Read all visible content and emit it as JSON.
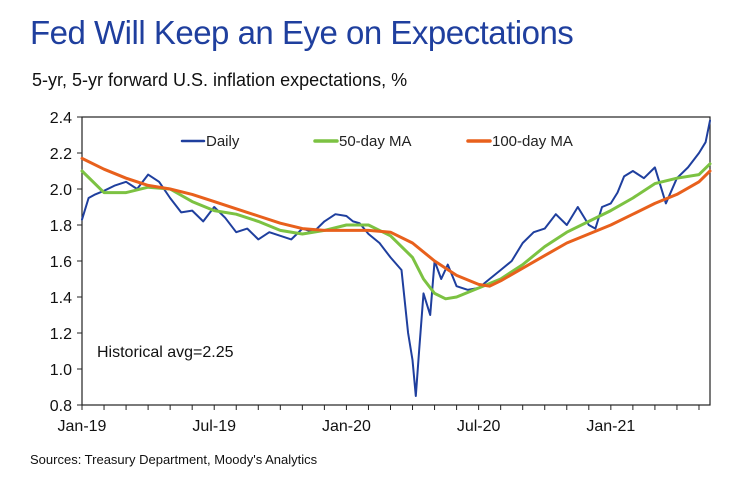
{
  "chart_data": {
    "type": "line",
    "title": "Fed Will Keep an Eye on Expectations",
    "subtitle": "5-yr, 5-yr forward U.S. inflation expectations, %",
    "source": "Sources: Treasury Department, Moody's Analytics",
    "annotation": "Historical avg=2.25",
    "ylim": [
      0.8,
      2.4
    ],
    "yticks": [
      "0.8",
      "1.0",
      "1.2",
      "1.4",
      "1.6",
      "1.8",
      "2.0",
      "2.2",
      "2.4"
    ],
    "xlim": [
      0,
      28.5
    ],
    "xticks": [
      {
        "label": "Jan-19",
        "x": 0
      },
      {
        "label": "Jul-19",
        "x": 6
      },
      {
        "label": "Jan-20",
        "x": 12
      },
      {
        "label": "Jul-20",
        "x": 18
      },
      {
        "label": "Jan-21",
        "x": 24
      }
    ],
    "legend": "top",
    "series": [
      {
        "name": "Daily",
        "color": "#1f3f9e",
        "x": [
          0,
          0.3,
          0.6,
          1,
          1.5,
          2,
          2.5,
          3,
          3.5,
          4,
          4.5,
          5,
          5.5,
          6,
          6.5,
          7,
          7.5,
          8,
          8.5,
          9,
          9.5,
          10,
          10.5,
          11,
          11.5,
          12,
          12.3,
          12.6,
          13,
          13.5,
          14,
          14.5,
          14.8,
          15,
          15.15,
          15.3,
          15.5,
          15.8,
          16,
          16.3,
          16.6,
          17,
          17.5,
          18,
          18.5,
          19,
          19.5,
          20,
          20.5,
          21,
          21.5,
          22,
          22.5,
          23,
          23.3,
          23.6,
          24,
          24.3,
          24.6,
          25,
          25.5,
          26,
          26.5,
          27,
          27.5,
          28,
          28.3,
          28.5
        ],
        "values": [
          1.83,
          1.95,
          1.97,
          1.99,
          2.02,
          2.04,
          2.0,
          2.08,
          2.04,
          1.95,
          1.87,
          1.88,
          1.82,
          1.9,
          1.84,
          1.76,
          1.78,
          1.72,
          1.76,
          1.74,
          1.72,
          1.78,
          1.76,
          1.82,
          1.86,
          1.85,
          1.82,
          1.81,
          1.75,
          1.7,
          1.62,
          1.55,
          1.2,
          1.05,
          0.85,
          1.1,
          1.42,
          1.3,
          1.6,
          1.5,
          1.58,
          1.46,
          1.44,
          1.45,
          1.5,
          1.55,
          1.6,
          1.7,
          1.76,
          1.78,
          1.86,
          1.8,
          1.9,
          1.8,
          1.78,
          1.9,
          1.92,
          1.98,
          2.07,
          2.1,
          2.06,
          2.12,
          1.92,
          2.06,
          2.12,
          2.2,
          2.26,
          2.38
        ]
      },
      {
        "name": "50-day MA",
        "color": "#7cc242",
        "x": [
          0,
          1,
          2,
          3,
          4,
          5,
          6,
          7,
          8,
          9,
          10,
          11,
          12,
          13,
          14,
          15,
          15.5,
          16,
          16.5,
          17,
          18,
          19,
          20,
          21,
          22,
          23,
          24,
          25,
          26,
          27,
          28,
          28.5
        ],
        "values": [
          2.1,
          1.98,
          1.98,
          2.01,
          2.0,
          1.93,
          1.88,
          1.86,
          1.82,
          1.77,
          1.75,
          1.77,
          1.8,
          1.8,
          1.74,
          1.62,
          1.5,
          1.42,
          1.39,
          1.4,
          1.45,
          1.5,
          1.58,
          1.68,
          1.76,
          1.82,
          1.88,
          1.95,
          2.03,
          2.06,
          2.08,
          2.14
        ]
      },
      {
        "name": "100-day MA",
        "color": "#e8601c",
        "x": [
          0,
          1,
          2,
          3,
          4,
          5,
          6,
          7,
          8,
          9,
          10,
          11,
          12,
          13,
          14,
          15,
          16,
          17,
          18,
          18.5,
          19,
          20,
          21,
          22,
          23,
          24,
          25,
          26,
          27,
          28,
          28.5
        ],
        "values": [
          2.17,
          2.11,
          2.06,
          2.02,
          2.0,
          1.97,
          1.93,
          1.89,
          1.85,
          1.81,
          1.78,
          1.77,
          1.77,
          1.77,
          1.76,
          1.7,
          1.6,
          1.52,
          1.47,
          1.46,
          1.49,
          1.56,
          1.63,
          1.7,
          1.75,
          1.8,
          1.86,
          1.92,
          1.97,
          2.04,
          2.1
        ]
      }
    ]
  }
}
